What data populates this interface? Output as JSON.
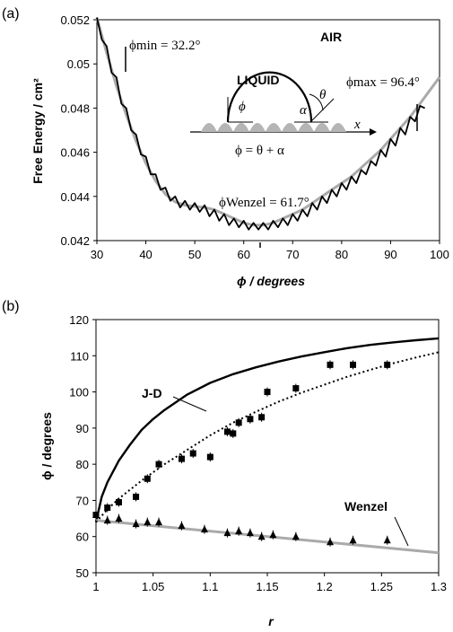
{
  "chart_data": [
    {
      "type": "line",
      "panel_label": "(a)",
      "xlabel": "ϕ / degrees",
      "ylabel": "Free Energy / cm²",
      "xlim": [
        30,
        100
      ],
      "ylim": [
        0.042,
        0.052
      ],
      "xticks": [
        "30",
        "40",
        "50",
        "60",
        "70",
        "80",
        "90",
        "100"
      ],
      "yticks": [
        "0.042",
        "0.044",
        "0.046",
        "0.048",
        "0.05",
        "0.052"
      ],
      "grid": false,
      "series": [
        {
          "role": "smooth-envelope",
          "color": "#aaaaaa",
          "x": [
            30,
            32,
            34,
            36,
            38,
            40,
            42,
            44,
            46,
            48,
            50,
            52,
            54,
            56,
            58,
            60,
            62,
            64,
            66,
            68,
            70,
            72,
            74,
            76,
            78,
            80,
            82,
            84,
            86,
            88,
            90,
            92,
            94,
            96,
            98,
            100
          ],
          "y": [
            0.0521,
            0.0505,
            0.049,
            0.0477,
            0.0465,
            0.0455,
            0.0447,
            0.0441,
            0.04375,
            0.0436,
            0.04355,
            0.0435,
            0.0434,
            0.0432,
            0.043,
            0.0428,
            0.0427,
            0.0427,
            0.0428,
            0.043,
            0.0432,
            0.0434,
            0.0437,
            0.044,
            0.0443,
            0.0446,
            0.0449,
            0.0453,
            0.0457,
            0.0461,
            0.0466,
            0.0471,
            0.0476,
            0.0482,
            0.0488,
            0.0494
          ]
        },
        {
          "role": "oscillating",
          "color": "#000000",
          "x": [
            30,
            31,
            32,
            33,
            34,
            35,
            36,
            37,
            38,
            39,
            40,
            41,
            42,
            43,
            44,
            45,
            46,
            47,
            48,
            49,
            50,
            51,
            52,
            53,
            54,
            55,
            56,
            57,
            58,
            59,
            60,
            61,
            62,
            63,
            64,
            65,
            66,
            67,
            68,
            69,
            70,
            71,
            72,
            73,
            74,
            75,
            76,
            77,
            78,
            79,
            80,
            81,
            82,
            83,
            84,
            85,
            86,
            87,
            88,
            89,
            90,
            91,
            92,
            93,
            94,
            95,
            96,
            97
          ],
          "y": [
            0.0521,
            0.0511,
            0.0508,
            0.0496,
            0.0494,
            0.0482,
            0.048,
            0.047,
            0.0468,
            0.0459,
            0.0458,
            0.045,
            0.045,
            0.0443,
            0.0444,
            0.0438,
            0.044,
            0.0435,
            0.0438,
            0.0434,
            0.0437,
            0.0433,
            0.0436,
            0.0431,
            0.0434,
            0.0429,
            0.0432,
            0.0427,
            0.043,
            0.0426,
            0.0429,
            0.0425,
            0.0428,
            0.0425,
            0.0428,
            0.0425,
            0.0429,
            0.0426,
            0.043,
            0.0427,
            0.0432,
            0.0429,
            0.0434,
            0.0431,
            0.0437,
            0.0434,
            0.044,
            0.0437,
            0.0443,
            0.044,
            0.0446,
            0.0443,
            0.0449,
            0.0446,
            0.0452,
            0.045,
            0.0456,
            0.0454,
            0.0461,
            0.0458,
            0.0466,
            0.0463,
            0.0471,
            0.0468,
            0.0476,
            0.0474,
            0.0481,
            0.048
          ]
        }
      ],
      "annotations": {
        "phi_min": {
          "text": "ϕmin = 32.2°",
          "x": 32.2
        },
        "phi_max": {
          "text": "ϕmax = 96.4°",
          "x": 96.4
        },
        "phi_wenzel": {
          "text": "ϕWenzel = 61.7°",
          "x": 61.7
        }
      },
      "inset": {
        "air": "AIR",
        "liquid": "LIQUID",
        "phi": "ϕ",
        "alpha": "α",
        "theta": "θ",
        "x_axis": "x",
        "equation": "ϕ = θ + α"
      }
    },
    {
      "type": "scatter",
      "panel_label": "(b)",
      "xlabel": "r",
      "ylabel": "ϕ / degrees",
      "xlim": [
        1,
        1.3
      ],
      "ylim": [
        50,
        120
      ],
      "xticks": [
        "1",
        "1.05",
        "1.1",
        "1.15",
        "1.2",
        "1.25",
        "1.3"
      ],
      "yticks": [
        "50",
        "60",
        "70",
        "80",
        "90",
        "100",
        "110",
        "120"
      ],
      "grid": false,
      "lines": [
        {
          "name": "J-D",
          "color": "#000000",
          "x": [
            1,
            1.005,
            1.01,
            1.02,
            1.03,
            1.04,
            1.05,
            1.06,
            1.08,
            1.1,
            1.12,
            1.14,
            1.16,
            1.18,
            1.2,
            1.22,
            1.24,
            1.26,
            1.28,
            1.3
          ],
          "y": [
            64,
            71,
            75,
            81,
            85.5,
            89.5,
            92.5,
            95,
            99.3,
            102.5,
            104.9,
            106.8,
            108.4,
            109.8,
            111,
            112.1,
            113,
            113.7,
            114.3,
            114.8
          ]
        },
        {
          "name": "Wenzel",
          "color": "#aaaaaa",
          "x": [
            1,
            1.3
          ],
          "y": [
            64.5,
            55.5
          ]
        },
        {
          "name": "fit",
          "color": "#000000",
          "style": "dotted",
          "x": [
            1,
            1.01,
            1.02,
            1.04,
            1.06,
            1.08,
            1.1,
            1.12,
            1.14,
            1.16,
            1.18,
            1.2,
            1.22,
            1.24,
            1.26,
            1.28,
            1.3
          ],
          "y": [
            64,
            67.5,
            70.5,
            75.5,
            80,
            84,
            88,
            91.5,
            94.5,
            97.3,
            99.8,
            102,
            104.2,
            106.1,
            107.9,
            109.5,
            111
          ]
        }
      ],
      "series": [
        {
          "marker": "square",
          "x": [
            1,
            1.01,
            1.02,
            1.035,
            1.045,
            1.055,
            1.075,
            1.085,
            1.1,
            1.115,
            1.12,
            1.125,
            1.135,
            1.145,
            1.15,
            1.175,
            1.205,
            1.225,
            1.255
          ],
          "y": [
            66,
            68,
            69.5,
            71,
            76,
            80,
            81.5,
            83,
            82,
            89,
            88.5,
            91.5,
            92.5,
            93,
            100,
            101,
            107.5,
            107.5,
            107.5
          ]
        },
        {
          "marker": "triangle",
          "x": [
            1,
            1.01,
            1.02,
            1.035,
            1.045,
            1.055,
            1.075,
            1.095,
            1.115,
            1.125,
            1.135,
            1.145,
            1.155,
            1.175,
            1.205,
            1.225,
            1.255
          ],
          "y": [
            66,
            64.5,
            65,
            63.5,
            64,
            64,
            63,
            62,
            61,
            61.5,
            61,
            60,
            60.5,
            60,
            58.5,
            59,
            59
          ]
        }
      ],
      "labels": {
        "jd": "J-D",
        "wenzel": "Wenzel"
      }
    }
  ]
}
